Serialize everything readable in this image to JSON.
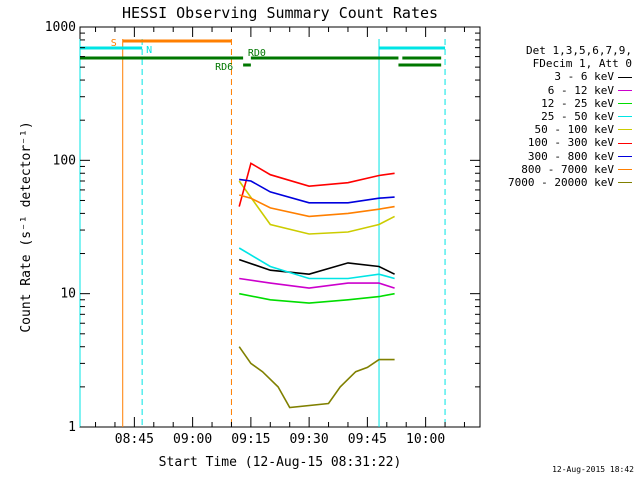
{
  "chart_data": {
    "type": "line",
    "title": "HESSI Observing Summary Count Rates",
    "xlabel": "Start Time (12-Aug-15 08:31:22)",
    "ylabel": "Count Rate (s⁻¹ detector⁻¹)",
    "x_unit": "minutes",
    "xlim": [
      "08:31",
      "10:14"
    ],
    "ylim": [
      1,
      1000
    ],
    "yscale": "log",
    "xticks": [
      "08:45",
      "09:00",
      "09:15",
      "09:30",
      "09:45",
      "10:00"
    ],
    "yticks": [
      "1",
      "10",
      "100",
      "1000"
    ],
    "grid": false,
    "legend_position": "right",
    "legend_header": [
      "Det 1,3,5,6,7,9,",
      "FDecim 1, Att 0"
    ],
    "series": [
      {
        "name": "3 - 6 keV",
        "color": "#000000",
        "x": [
          "09:12",
          "09:20",
          "09:30",
          "09:40",
          "09:48",
          "09:52"
        ],
        "values": [
          18,
          15,
          14,
          17,
          16,
          14
        ]
      },
      {
        "name": "6 - 12 keV",
        "color": "#cc00cc",
        "x": [
          "09:12",
          "09:20",
          "09:30",
          "09:40",
          "09:48",
          "09:52"
        ],
        "values": [
          13,
          12,
          11,
          12,
          12,
          11
        ]
      },
      {
        "name": "12 - 25 keV",
        "color": "#00dd00",
        "x": [
          "09:12",
          "09:20",
          "09:30",
          "09:40",
          "09:48",
          "09:52"
        ],
        "values": [
          10,
          9,
          8.5,
          9,
          9.5,
          10
        ]
      },
      {
        "name": "25 - 50 keV",
        "color": "#00e5e5",
        "x": [
          "09:12",
          "09:20",
          "09:30",
          "09:40",
          "09:48",
          "09:52"
        ],
        "values": [
          22,
          16,
          13,
          13,
          14,
          13
        ]
      },
      {
        "name": "50 - 100 keV",
        "color": "#cccc00",
        "x": [
          "09:12",
          "09:20",
          "09:30",
          "09:40",
          "09:48",
          "09:52"
        ],
        "values": [
          70,
          33,
          28,
          29,
          33,
          38
        ]
      },
      {
        "name": "100 - 300 keV",
        "color": "#ff0000",
        "x": [
          "09:12",
          "09:15",
          "09:20",
          "09:30",
          "09:40",
          "09:48",
          "09:52"
        ],
        "values": [
          45,
          95,
          78,
          64,
          68,
          77,
          80
        ]
      },
      {
        "name": "300 - 800 keV",
        "color": "#0000dd",
        "x": [
          "09:12",
          "09:15",
          "09:20",
          "09:30",
          "09:40",
          "09:48",
          "09:52"
        ],
        "values": [
          72,
          70,
          58,
          48,
          48,
          52,
          53
        ]
      },
      {
        "name": "800 - 7000 keV",
        "color": "#ff7f00",
        "x": [
          "09:12",
          "09:15",
          "09:20",
          "09:30",
          "09:40",
          "09:48",
          "09:52"
        ],
        "values": [
          55,
          52,
          44,
          38,
          40,
          43,
          45
        ]
      },
      {
        "name": "7000 - 20000 keV",
        "color": "#808000",
        "x": [
          "09:12",
          "09:15",
          "09:18",
          "09:22",
          "09:25",
          "09:35",
          "09:38",
          "09:42",
          "09:45",
          "09:48",
          "09:52"
        ],
        "values": [
          4,
          3,
          2.6,
          2,
          1.4,
          1.5,
          2,
          2.6,
          2.8,
          3.2,
          3.2
        ]
      }
    ],
    "vertical_lines": [
      {
        "time": "08:31",
        "color": "#00e5e5",
        "style": "solid"
      },
      {
        "time": "08:42",
        "color": "#ff7f00",
        "style": "solid"
      },
      {
        "time": "08:47",
        "color": "#00e5e5",
        "style": "dashed"
      },
      {
        "time": "09:10",
        "color": "#ff7f00",
        "style": "dashed"
      },
      {
        "time": "09:48",
        "color": "#00e5e5",
        "style": "solid"
      },
      {
        "time": "10:05",
        "color": "#00e5e5",
        "style": "dashed"
      }
    ],
    "state_bars": [
      {
        "label": "S",
        "color": "#ff7f00",
        "segments": [
          [
            "08:42",
            "09:10"
          ]
        ],
        "level": 1
      },
      {
        "label": "N",
        "color": "#00e5e5",
        "segments": [
          [
            "08:31",
            "08:47"
          ],
          [
            "09:48",
            "10:05"
          ]
        ],
        "level": 2
      },
      {
        "label": "RD0",
        "color": "#007700",
        "segments": [
          [
            "08:31",
            "09:13"
          ],
          [
            "09:15",
            "09:53"
          ],
          [
            "09:54",
            "10:04"
          ]
        ],
        "level": 3
      },
      {
        "label": "RD6",
        "color": "#007700",
        "segments": [
          [
            "09:13",
            "09:15"
          ],
          [
            "09:53",
            "10:04"
          ]
        ],
        "level": 4
      }
    ],
    "timestamp": "12-Aug-2015 18:42"
  }
}
